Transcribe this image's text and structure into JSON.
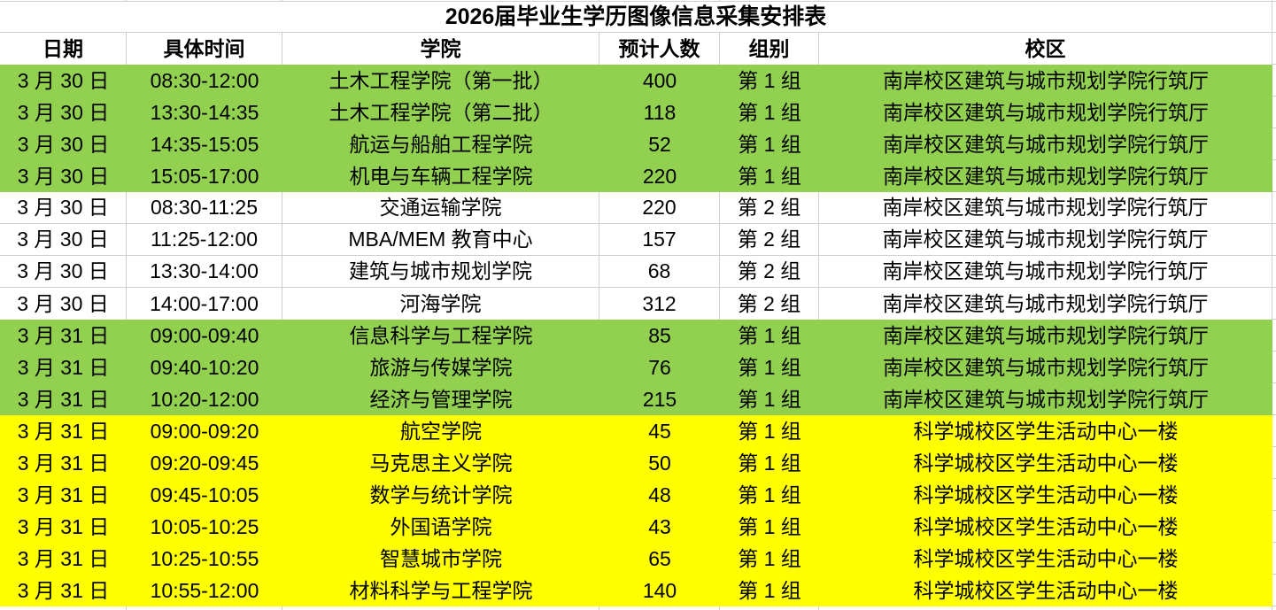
{
  "title": "2026届毕业生学历图像信息采集安排表",
  "columns": [
    "日期",
    "具体时间",
    "学院",
    "预计人数",
    "组别",
    "校区"
  ],
  "colors": {
    "green_fill": "#92d050",
    "yellow_fill": "#ffff00",
    "gridline": "#cfcfcf",
    "text": "#000000",
    "background": "#ffffff"
  },
  "rows": [
    {
      "date": "3 月 30 日",
      "time": "08:30-12:00",
      "college": "土木工程学院（第一批）",
      "count": "400",
      "group": "第 1 组",
      "campus": "南岸校区建筑与城市规划学院行筑厅",
      "highlight": "green"
    },
    {
      "date": "3 月 30 日",
      "time": "13:30-14:35",
      "college": "土木工程学院（第二批）",
      "count": "118",
      "group": "第 1 组",
      "campus": "南岸校区建筑与城市规划学院行筑厅",
      "highlight": "green"
    },
    {
      "date": "3 月 30 日",
      "time": "14:35-15:05",
      "college": "航运与船舶工程学院",
      "count": "52",
      "group": "第 1 组",
      "campus": "南岸校区建筑与城市规划学院行筑厅",
      "highlight": "green"
    },
    {
      "date": "3 月 30 日",
      "time": "15:05-17:00",
      "college": "机电与车辆工程学院",
      "count": "220",
      "group": "第 1 组",
      "campus": "南岸校区建筑与城市规划学院行筑厅",
      "highlight": "green"
    },
    {
      "date": "3 月 30 日",
      "time": "08:30-11:25",
      "college": "交通运输学院",
      "count": "220",
      "group": "第 2 组",
      "campus": "南岸校区建筑与城市规划学院行筑厅",
      "highlight": "none"
    },
    {
      "date": "3 月 30 日",
      "time": "11:25-12:00",
      "college": "MBA/MEM 教育中心",
      "count": "157",
      "group": "第 2 组",
      "campus": "南岸校区建筑与城市规划学院行筑厅",
      "highlight": "none"
    },
    {
      "date": "3 月 30 日",
      "time": "13:30-14:00",
      "college": "建筑与城市规划学院",
      "count": "68",
      "group": "第 2 组",
      "campus": "南岸校区建筑与城市规划学院行筑厅",
      "highlight": "none"
    },
    {
      "date": "3 月 30 日",
      "time": "14:00-17:00",
      "college": "河海学院",
      "count": "312",
      "group": "第 2 组",
      "campus": "南岸校区建筑与城市规划学院行筑厅",
      "highlight": "none"
    },
    {
      "date": "3 月 31 日",
      "time": "09:00-09:40",
      "college": "信息科学与工程学院",
      "count": "85",
      "group": "第 1 组",
      "campus": "南岸校区建筑与城市规划学院行筑厅",
      "highlight": "green"
    },
    {
      "date": "3 月 31 日",
      "time": "09:40-10:20",
      "college": "旅游与传媒学院",
      "count": "76",
      "group": "第 1 组",
      "campus": "南岸校区建筑与城市规划学院行筑厅",
      "highlight": "green"
    },
    {
      "date": "3 月 31 日",
      "time": "10:20-12:00",
      "college": "经济与管理学院",
      "count": "215",
      "group": "第 1 组",
      "campus": "南岸校区建筑与城市规划学院行筑厅",
      "highlight": "green"
    },
    {
      "date": "3 月 31 日",
      "time": "09:00-09:20",
      "college": "航空学院",
      "count": "45",
      "group": "第 1 组",
      "campus": "科学城校区学生活动中心一楼",
      "highlight": "yellow"
    },
    {
      "date": "3 月 31 日",
      "time": "09:20-09:45",
      "college": "马克思主义学院",
      "count": "50",
      "group": "第 1 组",
      "campus": "科学城校区学生活动中心一楼",
      "highlight": "yellow"
    },
    {
      "date": "3 月 31 日",
      "time": "09:45-10:05",
      "college": "数学与统计学院",
      "count": "48",
      "group": "第 1 组",
      "campus": "科学城校区学生活动中心一楼",
      "highlight": "yellow"
    },
    {
      "date": "3 月 31 日",
      "time": "10:05-10:25",
      "college": "外国语学院",
      "count": "43",
      "group": "第 1 组",
      "campus": "科学城校区学生活动中心一楼",
      "highlight": "yellow"
    },
    {
      "date": "3 月 31 日",
      "time": "10:25-10:55",
      "college": "智慧城市学院",
      "count": "65",
      "group": "第 1 组",
      "campus": "科学城校区学生活动中心一楼",
      "highlight": "yellow"
    },
    {
      "date": "3 月 31 日",
      "time": "10:55-12:00",
      "college": "材料科学与工程学院",
      "count": "140",
      "group": "第 1 组",
      "campus": "科学城校区学生活动中心一楼",
      "highlight": "yellow"
    }
  ]
}
